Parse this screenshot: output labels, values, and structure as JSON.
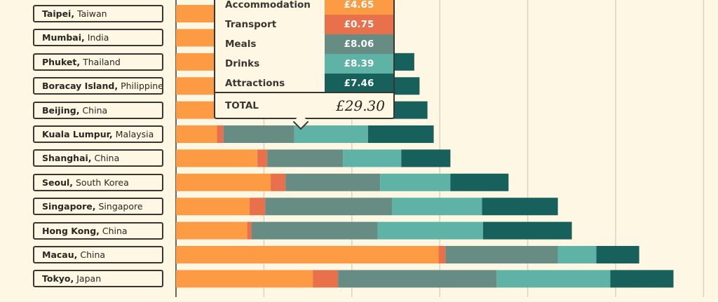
{
  "chart_data": {
    "type": "bar",
    "orientation": "horizontal",
    "stacked": true,
    "unit": "£",
    "xlim": [
      0,
      60
    ],
    "x_gridlines": [
      0,
      10,
      20,
      30,
      40,
      50,
      60
    ],
    "grid": true,
    "categories": [
      {
        "city": "Taipei,",
        "country": "Taiwan"
      },
      {
        "city": "Mumbai,",
        "country": "India"
      },
      {
        "city": "Phuket,",
        "country": "Thailand"
      },
      {
        "city": "Boracay Island,",
        "country": "Philippines"
      },
      {
        "city": "Beijing,",
        "country": "China"
      },
      {
        "city": "Kuala Lumpur,",
        "country": "Malaysia"
      },
      {
        "city": "Shanghai,",
        "country": "China"
      },
      {
        "city": "Seoul,",
        "country": "South Korea"
      },
      {
        "city": "Singapore,",
        "country": "Singapore"
      },
      {
        "city": "Hong Kong,",
        "country": "China"
      },
      {
        "city": "Macau,",
        "country": "China"
      },
      {
        "city": "Tokyo,",
        "country": "Japan"
      }
    ],
    "series": [
      {
        "name": "Accommodation",
        "color": "#fd9a44",
        "values": [
          6.0,
          6.5,
          6.8,
          7.0,
          7.2,
          4.65,
          9.26,
          10.77,
          8.38,
          8.1,
          29.85,
          15.56
        ]
      },
      {
        "name": "Transport",
        "color": "#e8704a",
        "values": [
          0.8,
          0.9,
          0.8,
          0.9,
          0.8,
          0.75,
          1.12,
          1.68,
          1.76,
          0.48,
          0.8,
          2.87
        ]
      },
      {
        "name": "Meals",
        "color": "#668c84",
        "values": [
          6.0,
          6.5,
          7.0,
          7.0,
          7.2,
          8.06,
          8.62,
          10.77,
          14.45,
          14.37,
          12.77,
          18.04
        ]
      },
      {
        "name": "Drinks",
        "color": "#5eb3a6",
        "values": [
          5.5,
          6.0,
          6.5,
          6.5,
          6.4,
          8.39,
          6.62,
          7.98,
          10.22,
          11.97,
          4.39,
          12.93
        ]
      },
      {
        "name": "Attractions",
        "color": "#17605c",
        "values": [
          4.0,
          4.5,
          6.0,
          6.3,
          7.0,
          7.46,
          5.59,
          6.62,
          8.62,
          10.1,
          4.87,
          7.18
        ]
      }
    ]
  },
  "tooltip": {
    "rows": [
      {
        "label": "Accommodation",
        "value": "£4.65",
        "color": "#fd9a44"
      },
      {
        "label": "Transport",
        "value": "£0.75",
        "color": "#e8704a"
      },
      {
        "label": "Meals",
        "value": "£8.06",
        "color": "#668c84"
      },
      {
        "label": "Drinks",
        "value": "£8.39",
        "color": "#5eb3a6"
      },
      {
        "label": "Attractions",
        "value": "£7.46",
        "color": "#17605c"
      }
    ],
    "total_label": "TOTAL",
    "total_value": "£29.30"
  }
}
